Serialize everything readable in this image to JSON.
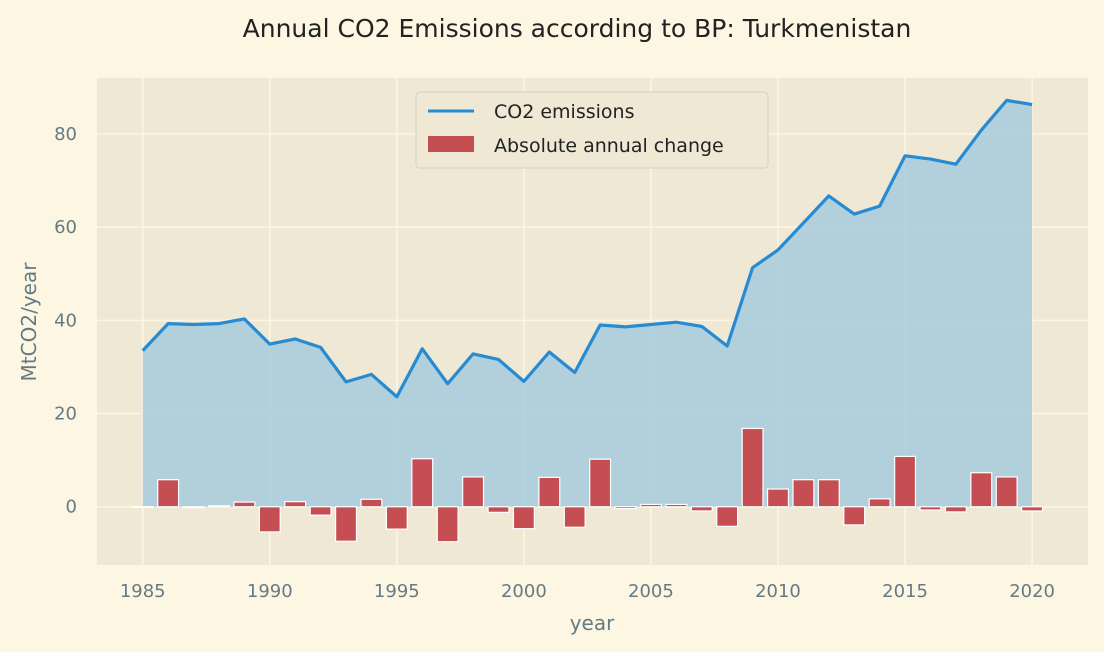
{
  "chart_data": {
    "type": "line",
    "title": "Annual CO2 Emissions according to BP: Turkmenistan",
    "xlabel": "year",
    "ylabel": "MtCO2/year",
    "xlim": [
      1983.2,
      2022.2
    ],
    "ylim": [
      -12.5,
      92
    ],
    "xticks": [
      1985,
      1990,
      1995,
      2000,
      2005,
      2010,
      2015,
      2020
    ],
    "yticks": [
      0,
      20,
      40,
      60,
      80
    ],
    "grid": true,
    "legend_position": "top-center",
    "x": [
      1985,
      1986,
      1987,
      1988,
      1989,
      1990,
      1991,
      1992,
      1993,
      1994,
      1995,
      1996,
      1997,
      1998,
      1999,
      2000,
      2001,
      2002,
      2003,
      2004,
      2005,
      2006,
      2007,
      2008,
      2009,
      2010,
      2011,
      2012,
      2013,
      2014,
      2015,
      2016,
      2017,
      2018,
      2019,
      2020
    ],
    "series": [
      {
        "name": "CO2 emissions",
        "type": "line",
        "color": "#268bd2",
        "fill_color": "#a3c9dd",
        "values": [
          33.5,
          39.3,
          39.1,
          39.3,
          40.3,
          34.9,
          36.0,
          34.2,
          26.8,
          28.4,
          23.6,
          33.9,
          26.4,
          32.8,
          31.6,
          26.9,
          33.2,
          28.8,
          39.0,
          38.6,
          39.1,
          39.6,
          38.7,
          34.5,
          51.3,
          55.1,
          60.9,
          66.7,
          62.8,
          64.5,
          75.3,
          74.6,
          73.5,
          80.8,
          87.2,
          86.3
        ]
      },
      {
        "name": "Absolute annual change",
        "type": "bar",
        "color": "#c44e52",
        "values": [
          0,
          5.8,
          -0.2,
          0.2,
          1.0,
          -5.4,
          1.1,
          -1.8,
          -7.4,
          1.6,
          -4.8,
          10.3,
          -7.5,
          6.4,
          -1.2,
          -4.7,
          6.3,
          -4.4,
          10.2,
          -0.4,
          0.5,
          0.5,
          -0.9,
          -4.2,
          16.8,
          3.8,
          5.8,
          5.8,
          -3.9,
          1.7,
          10.8,
          -0.7,
          -1.1,
          7.3,
          6.4,
          -0.9
        ]
      }
    ]
  }
}
